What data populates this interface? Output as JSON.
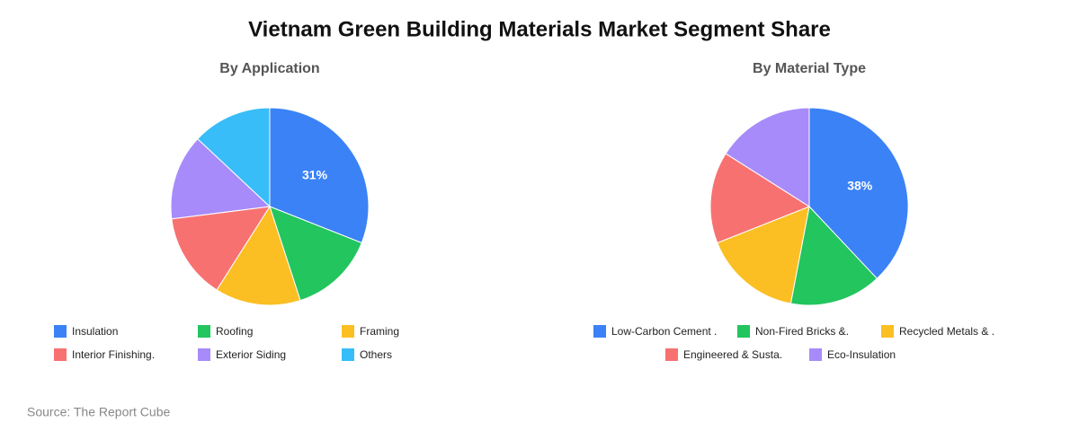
{
  "title": "Vietnam Green Building Materials Market Segment Share",
  "source": "Source: The Report Cube",
  "chart_data": [
    {
      "type": "pie",
      "title": "By Application",
      "categories": [
        "Insulation",
        "Roofing",
        "Framing",
        "Interior Finishing.",
        "Exterior Siding",
        "Others"
      ],
      "values": [
        31,
        14,
        14,
        14,
        14,
        13
      ],
      "value_labels": [
        "31%",
        null,
        null,
        null,
        null,
        null
      ],
      "colors": [
        "#3b82f6",
        "#22c55e",
        "#fbbf24",
        "#f87171",
        "#a78bfa",
        "#38bdf8"
      ]
    },
    {
      "type": "pie",
      "title": "By Material Type",
      "categories": [
        "Low-Carbon Cement .",
        "Non-Fired Bricks &.",
        "Recycled Metals & .",
        "Engineered & Susta.",
        "Eco-Insulation"
      ],
      "values": [
        38,
        15,
        16,
        15,
        16
      ],
      "value_labels": [
        "38%",
        null,
        null,
        null,
        null
      ],
      "colors": [
        "#3b82f6",
        "#22c55e",
        "#fbbf24",
        "#f87171",
        "#a78bfa"
      ]
    }
  ]
}
